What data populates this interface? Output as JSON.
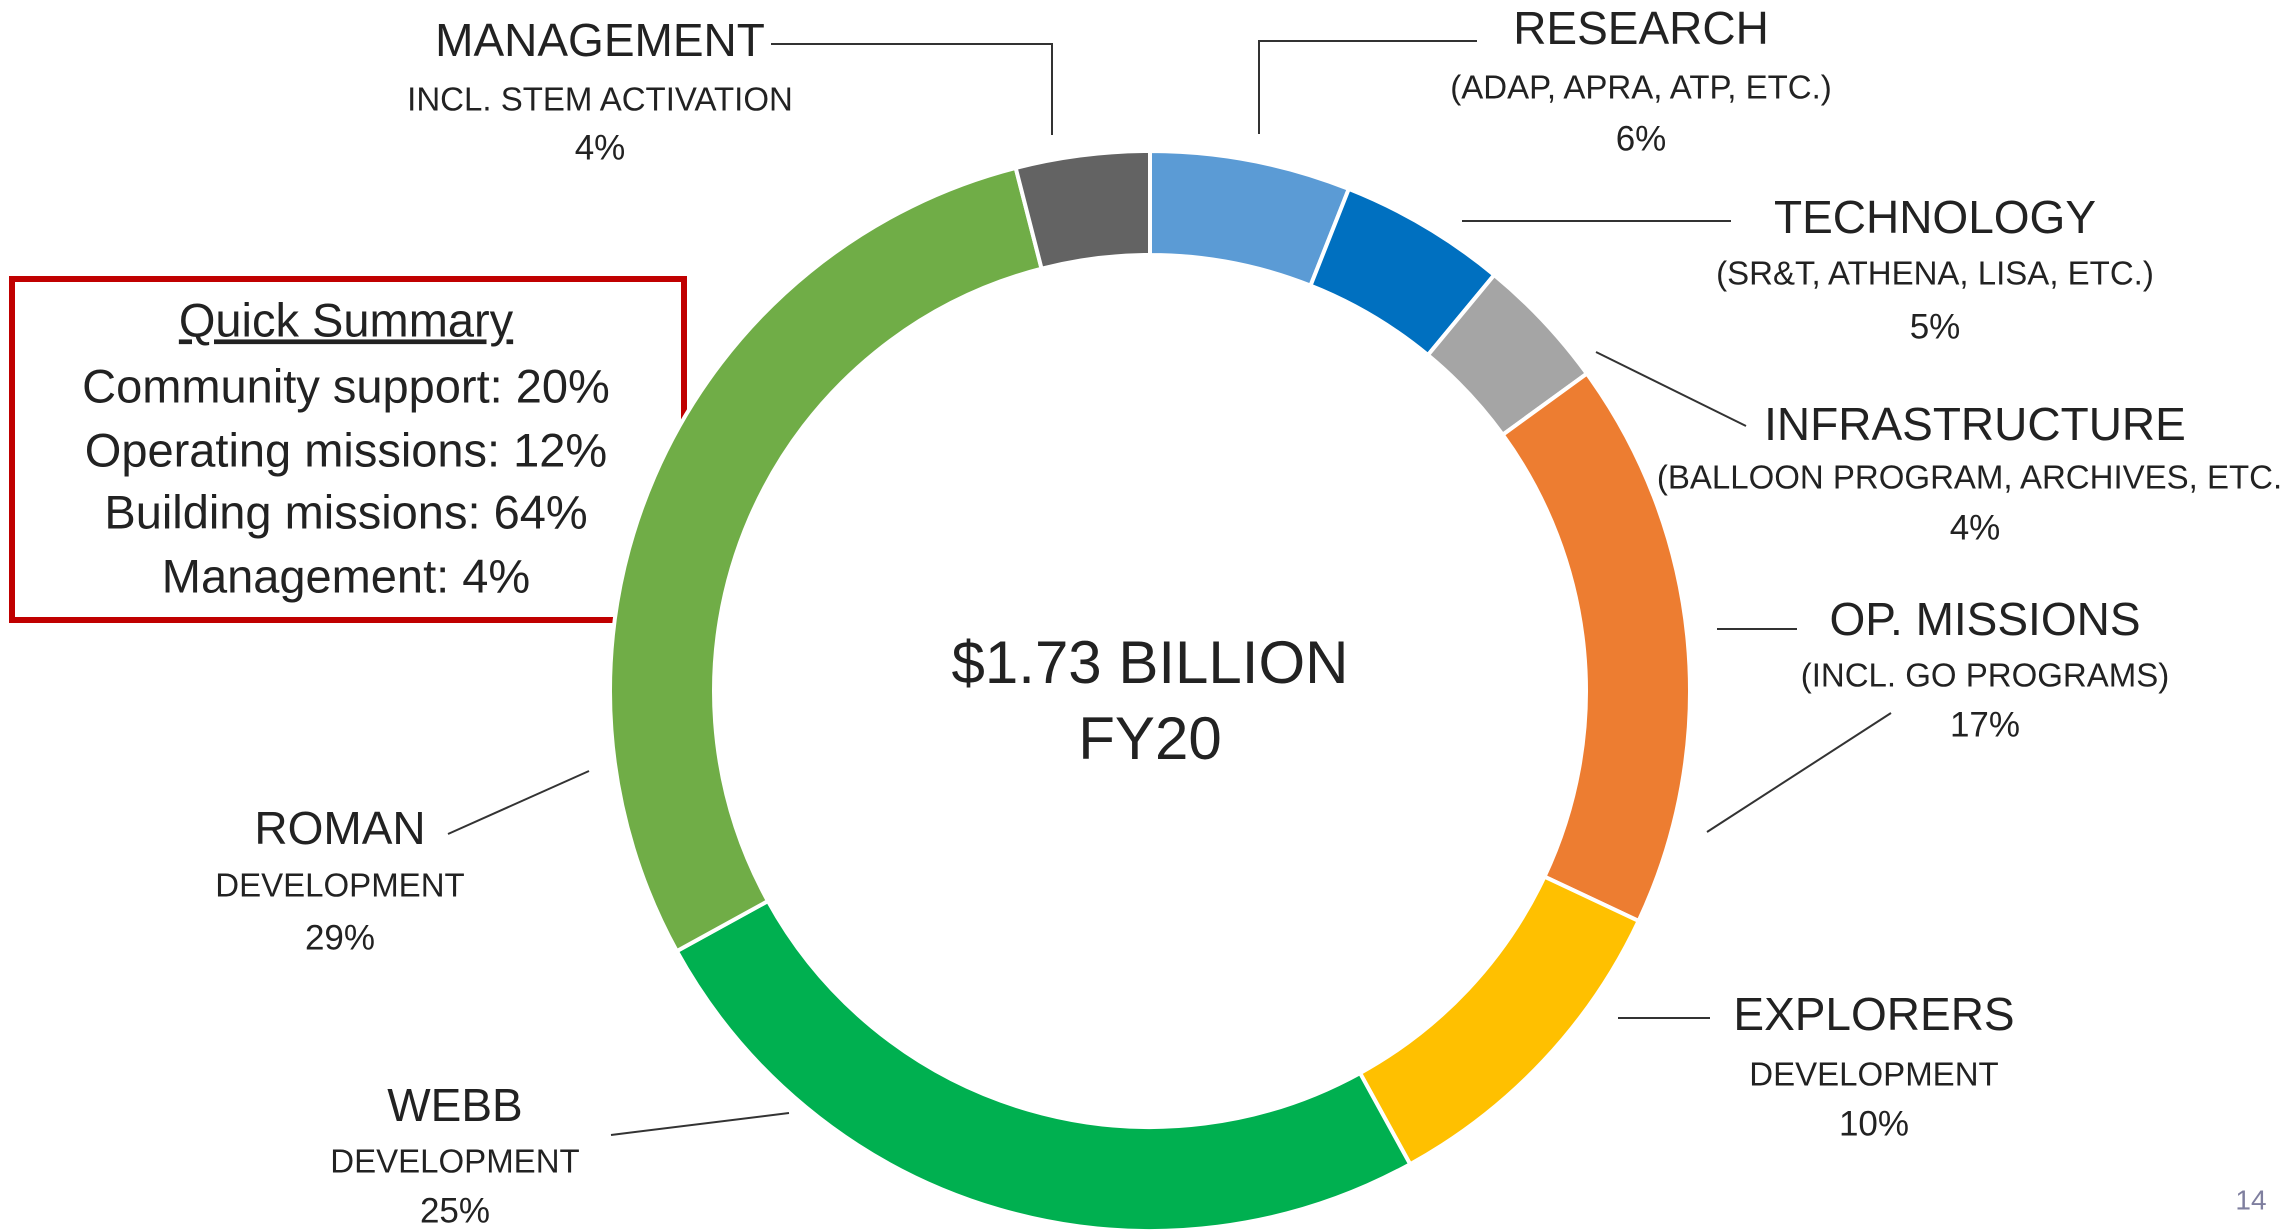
{
  "chart_data": {
    "type": "donut",
    "center_text": [
      "$1.73 BILLION",
      "FY20"
    ],
    "categories": [
      "RESEARCH",
      "TECHNOLOGY",
      "INFRASTRUCTURE",
      "OP. MISSIONS",
      "EXPLORERS",
      "WEBB",
      "ROMAN",
      "MANAGEMENT"
    ],
    "sublabels": [
      "(ADAP, APRA, ATP, ETC.)",
      "(SR&T, ATHENA, LISA, ETC.)",
      "(BALLOON PROGRAM, ARCHIVES, ETC.)",
      "(INCL. GO PROGRAMS)",
      "DEVELOPMENT",
      "DEVELOPMENT",
      "DEVELOPMENT",
      "INCL. STEM ACTIVATION"
    ],
    "values": [
      6,
      5,
      4,
      17,
      10,
      25,
      29,
      4
    ],
    "value_labels": [
      "6%",
      "5%",
      "4%",
      "17%",
      "10%",
      "25%",
      "29%",
      "4%"
    ],
    "colors": [
      "#5b9bd5",
      "#0070c0",
      "#a5a5a5",
      "#ed7d31",
      "#ffc000",
      "#00b050",
      "#70ad47",
      "#636363"
    ]
  },
  "summary": {
    "title": "Quick Summary",
    "lines": [
      "Community support: 20%",
      "Operating missions: 12%",
      "Building missions: 64%",
      "Management: 4%"
    ]
  },
  "page_number": "14"
}
